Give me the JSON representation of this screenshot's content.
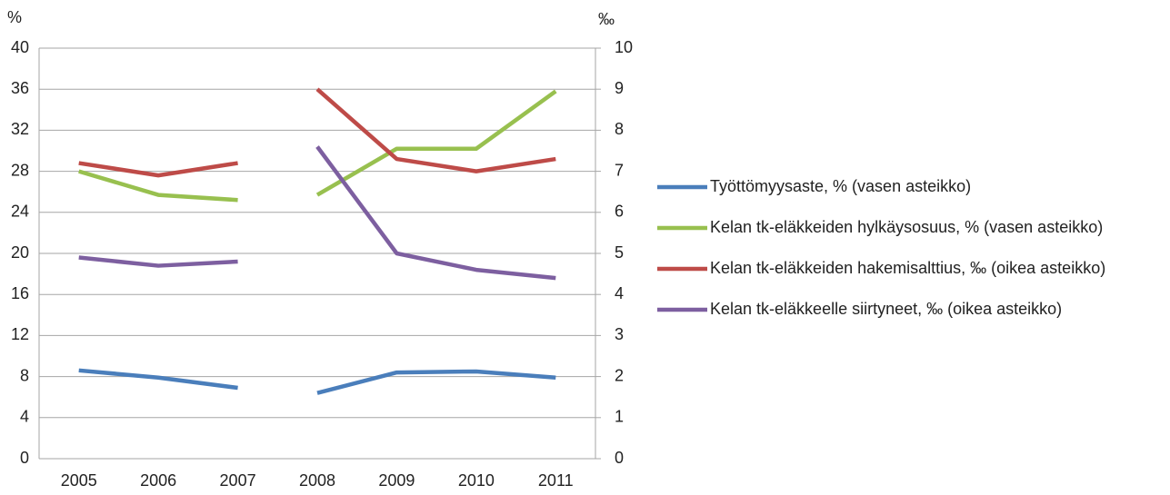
{
  "chart_data": {
    "type": "line",
    "y_label": "%",
    "y2_label": "‰",
    "categories": [
      "2005",
      "2006",
      "2007",
      "2008",
      "2009",
      "2010",
      "2011"
    ],
    "ylim": [
      0,
      40
    ],
    "yticks": [
      0,
      4,
      8,
      12,
      16,
      20,
      24,
      28,
      32,
      36,
      40
    ],
    "y2lim": [
      0,
      10
    ],
    "y2ticks": [
      0,
      1,
      2,
      3,
      4,
      5,
      6,
      7,
      8,
      9,
      10
    ],
    "grid": true,
    "legend": "right",
    "series": [
      {
        "name": "Työttömyysaste, % (vasen asteikko)",
        "color": "#4a7ebb",
        "values": [
          8.6,
          7.9,
          6.9,
          null,
          null,
          null,
          null
        ]
      },
      {
        "color": "#4a7ebb",
        "values": [
          null,
          null,
          null,
          6.4,
          8.4,
          8.5,
          7.9
        ]
      },
      {
        "name": "Kelan tk-eläkkeiden hylkäysosuus, % (vasen asteikko)",
        "color": "#98c04f",
        "values": [
          28.0,
          25.7,
          25.2,
          null,
          null,
          null,
          null
        ]
      },
      {
        "color": "#98c04f",
        "values": [
          null,
          null,
          null,
          25.7,
          30.2,
          30.2,
          35.8
        ]
      },
      {
        "name": "Kelan tk-eläkkeiden hakemisalttius, ‰ (oikea asteikko)",
        "color": "#be4b48",
        "axis": "y2",
        "values": [
          7.2,
          6.9,
          7.2,
          null,
          null,
          null,
          null
        ]
      },
      {
        "color": "#be4b48",
        "axis": "y2",
        "values": [
          null,
          null,
          null,
          9.0,
          7.3,
          7.0,
          7.3
        ]
      },
      {
        "name": "Kelan tk-eläkkeelle siirtyneet, ‰ (oikea asteikko)",
        "color": "#7d5fa0",
        "axis": "y2",
        "values": [
          4.9,
          4.7,
          4.8,
          null,
          null,
          null,
          null
        ]
      },
      {
        "color": "#7d5fa0",
        "axis": "y2",
        "values": [
          null,
          null,
          null,
          7.6,
          5.0,
          4.6,
          4.4
        ]
      }
    ]
  }
}
